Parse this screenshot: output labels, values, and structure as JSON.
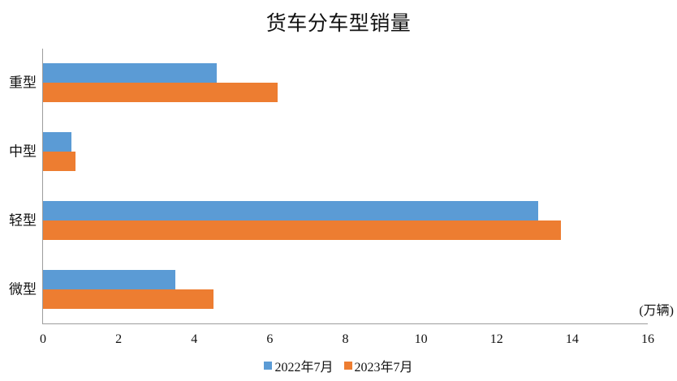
{
  "chart_data": {
    "type": "bar",
    "orientation": "horizontal",
    "title": "货车分车型销量",
    "unit": "(万辆)",
    "categories": [
      "重型",
      "中型",
      "轻型",
      "微型"
    ],
    "series": [
      {
        "name": "2022年7月",
        "color": "#5B9BD5",
        "values": [
          4.6,
          0.75,
          13.1,
          3.5
        ]
      },
      {
        "name": "2023年7月",
        "color": "#ED7D31",
        "values": [
          6.2,
          0.85,
          13.7,
          4.5
        ]
      }
    ],
    "xlim": [
      0,
      16
    ],
    "xticks": [
      0,
      2,
      4,
      6,
      8,
      10,
      12,
      14,
      16
    ],
    "legend_position": "bottom",
    "grid": false,
    "axis_color": "#9D9D9D",
    "background_color": "#FFFFFF",
    "text_color": "#111111"
  }
}
